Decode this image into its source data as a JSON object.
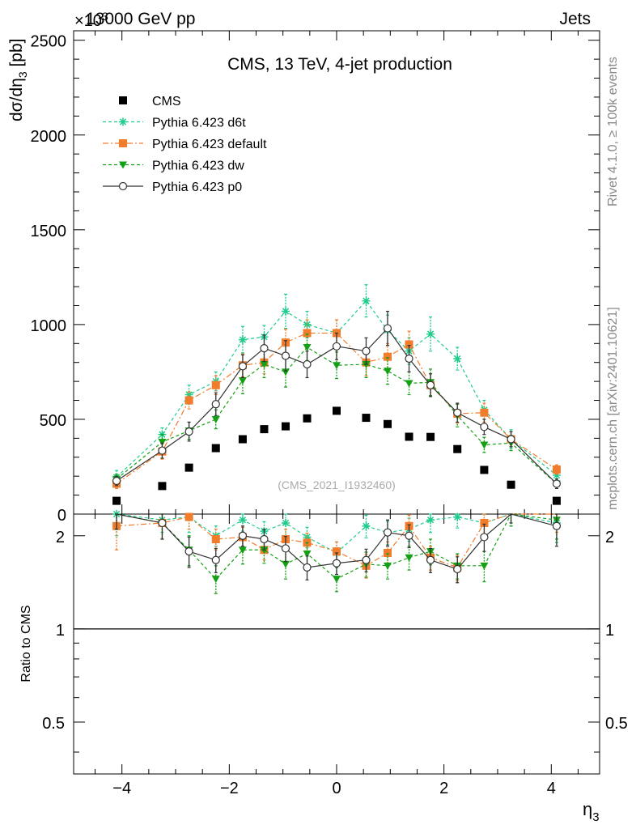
{
  "header": {
    "left_title": "13000 GeV pp",
    "right_title": "Jets",
    "exponent_label": "×10",
    "exponent_power": "3"
  },
  "side_labels": {
    "rivet": "Rivet 4.1.0, ≥ 100k events",
    "mcplots": "mcplots.cern.ch [arXiv:2401.10621]"
  },
  "chart_data": [
    {
      "type": "line",
      "title": "CMS, 13 TeV, 4-jet production",
      "watermark": "(CMS_2021_I1932460)",
      "xlabel": "η",
      "xlabel_sub": "3",
      "ylabel": "dσ/dη",
      "ylabel_sub": "3",
      "ylabel_unit": " [pb]",
      "xlim": [
        -4.9,
        4.9
      ],
      "ylim": [
        0,
        2550
      ],
      "yticks": [
        0,
        500,
        1000,
        1500,
        2000,
        2500
      ],
      "ytick_labels": [
        "0",
        "500",
        "1000",
        "1500",
        "2000",
        "2500"
      ],
      "x": [
        -4.1,
        -3.25,
        -2.75,
        -2.25,
        -1.75,
        -1.35,
        -0.95,
        -0.55,
        0.0,
        0.55,
        0.95,
        1.35,
        1.75,
        2.25,
        2.75,
        3.25,
        4.1
      ],
      "series": [
        {
          "name": "CMS",
          "color": "#000000",
          "marker": "square",
          "line": "none",
          "values": [
            70,
            148,
            245,
            348,
            395,
            448,
            463,
            505,
            545,
            508,
            475,
            408,
            407,
            343,
            233,
            155,
            70
          ],
          "errors": [
            0,
            0,
            0,
            0,
            0,
            0,
            0,
            0,
            0,
            0,
            0,
            0,
            0,
            0,
            0,
            0,
            0
          ]
        },
        {
          "name": "Pythia 6.423 d6t",
          "color": "#1ecc8c",
          "marker": "star",
          "line": "dashed",
          "values": [
            195,
            420,
            630,
            700,
            920,
            935,
            1070,
            1000,
            955,
            1125,
            970,
            860,
            950,
            820,
            550,
            395,
            205
          ],
          "errors": [
            35,
            35,
            50,
            50,
            70,
            60,
            90,
            70,
            70,
            85,
            80,
            70,
            90,
            60,
            50,
            50,
            35
          ]
        },
        {
          "name": "Pythia 6.423 default",
          "color": "#f07c2c",
          "marker": "square",
          "line": "dashdot",
          "values": [
            160,
            330,
            600,
            680,
            785,
            800,
            905,
            955,
            955,
            800,
            830,
            895,
            680,
            530,
            535,
            395,
            235
          ],
          "errors": [
            25,
            40,
            45,
            50,
            60,
            60,
            70,
            70,
            70,
            70,
            70,
            70,
            60,
            50,
            50,
            40,
            25
          ]
        },
        {
          "name": "Pythia 6.423 dw",
          "color": "#14a014",
          "marker": "triangle-down",
          "line": "dashed",
          "values": [
            185,
            380,
            440,
            500,
            705,
            790,
            750,
            880,
            785,
            790,
            755,
            690,
            695,
            520,
            365,
            375,
            160
          ],
          "errors": [
            25,
            40,
            45,
            50,
            70,
            70,
            80,
            70,
            70,
            70,
            70,
            60,
            70,
            60,
            40,
            40,
            25
          ]
        },
        {
          "name": "Pythia 6.423 p0",
          "color": "#333333",
          "marker": "circle-open",
          "line": "solid",
          "values": [
            175,
            335,
            435,
            580,
            780,
            875,
            835,
            790,
            885,
            860,
            980,
            820,
            680,
            535,
            460,
            395,
            160
          ],
          "errors": [
            25,
            40,
            50,
            60,
            60,
            70,
            80,
            70,
            70,
            70,
            90,
            70,
            60,
            50,
            40,
            40,
            25
          ]
        }
      ]
    },
    {
      "type": "line",
      "title": "",
      "xlabel": "η",
      "xlabel_sub": "3",
      "ylabel": "Ratio to CMS",
      "yscale": "log",
      "ylim": [
        0.34,
        2.35
      ],
      "yticks": [
        0.5,
        1,
        2
      ],
      "ytick_labels": [
        "0.5",
        "1",
        "2"
      ],
      "xticks": [
        -4,
        -2,
        0,
        2,
        4
      ],
      "xtick_labels": [
        "−4",
        "−2",
        "0",
        "2",
        "4"
      ],
      "reference_line": 1,
      "x": [
        -4.1,
        -3.25,
        -2.75,
        -2.25,
        -1.75,
        -1.35,
        -0.95,
        -0.55,
        0.0,
        0.55,
        0.95,
        1.35,
        1.75,
        2.25,
        2.75,
        3.25,
        4.1
      ],
      "series": [
        {
          "name": "Pythia 6.423 d6t",
          "color": "#1ecc8c",
          "marker": "star",
          "line": "dashed",
          "values": [
            2.35,
            2.25,
            2.3,
            2.0,
            2.25,
            2.07,
            2.2,
            1.98,
            1.76,
            2.15,
            2.05,
            2.1,
            2.25,
            2.3,
            2.2,
            2.4,
            2.2
          ],
          "errors": [
            0.35,
            0.2,
            0.25,
            0.15,
            0.18,
            0.15,
            0.2,
            0.15,
            0.15,
            0.18,
            0.18,
            0.18,
            0.2,
            0.18,
            0.2,
            0.25,
            0.3
          ]
        },
        {
          "name": "Pythia 6.423 default",
          "color": "#f07c2c",
          "marker": "square",
          "line": "dashdot",
          "values": [
            2.15,
            2.2,
            2.3,
            1.95,
            1.98,
            1.8,
            1.95,
            1.9,
            1.78,
            1.6,
            1.76,
            2.15,
            1.7,
            1.58,
            2.2,
            2.45,
            2.4
          ],
          "errors": [
            0.35,
            0.25,
            0.2,
            0.15,
            0.15,
            0.13,
            0.15,
            0.14,
            0.13,
            0.14,
            0.15,
            0.18,
            0.15,
            0.15,
            0.2,
            0.25,
            0.35
          ]
        },
        {
          "name": "Pythia 6.423 dw",
          "color": "#14a014",
          "marker": "triangle-down",
          "line": "dashed",
          "values": [
            2.4,
            2.2,
            1.8,
            1.45,
            1.8,
            1.8,
            1.62,
            1.75,
            1.45,
            1.62,
            1.6,
            1.7,
            1.78,
            1.6,
            1.6,
            2.4,
            2.25
          ],
          "errors": [
            0.3,
            0.25,
            0.2,
            0.15,
            0.18,
            0.17,
            0.17,
            0.15,
            0.13,
            0.15,
            0.15,
            0.15,
            0.17,
            0.15,
            0.18,
            0.25,
            0.3
          ]
        },
        {
          "name": "Pythia 6.423 p0",
          "color": "#333333",
          "marker": "circle-open",
          "line": "solid",
          "values": [
            2.45,
            2.2,
            1.78,
            1.67,
            2.0,
            1.95,
            1.82,
            1.58,
            1.63,
            1.67,
            2.05,
            2.0,
            1.67,
            1.56,
            1.98,
            2.45,
            2.15
          ],
          "errors": [
            0.35,
            0.25,
            0.2,
            0.15,
            0.15,
            0.15,
            0.17,
            0.14,
            0.13,
            0.14,
            0.2,
            0.17,
            0.15,
            0.15,
            0.2,
            0.25,
            0.3
          ]
        }
      ]
    }
  ]
}
